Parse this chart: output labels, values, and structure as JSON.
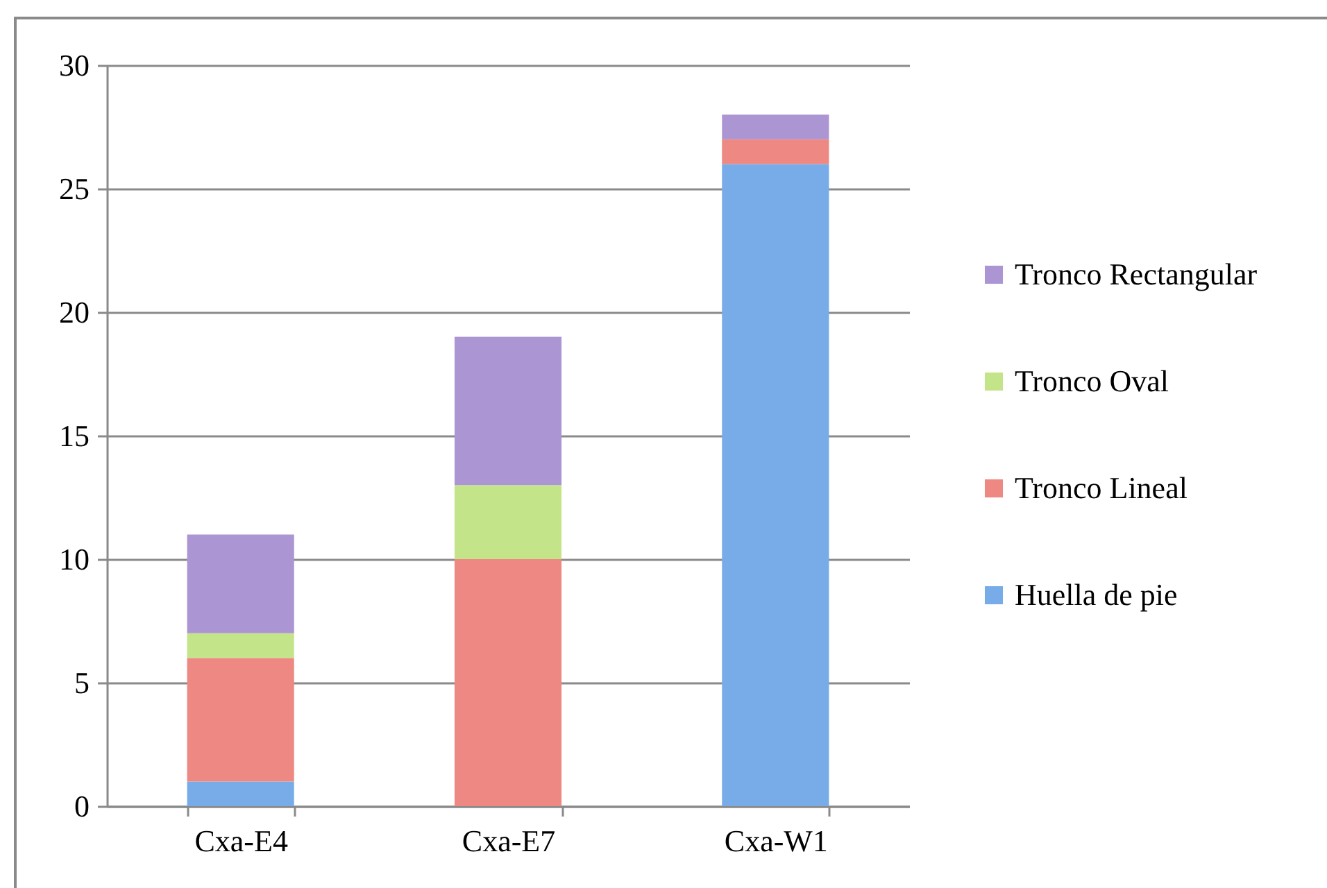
{
  "chart_data": {
    "type": "bar",
    "stacked": true,
    "categories": [
      "Cxa-E4",
      "Cxa-E7",
      "Cxa-W1"
    ],
    "series": [
      {
        "name": "Huella de pie",
        "color": "#78ace8",
        "values": [
          1,
          0,
          26
        ]
      },
      {
        "name": "Tronco Lineal",
        "color": "#ee8882",
        "values": [
          5,
          10,
          1
        ]
      },
      {
        "name": "Tronco Oval",
        "color": "#c4e48a",
        "values": [
          1,
          3,
          0
        ]
      },
      {
        "name": "Tronco Rectangular",
        "color": "#ab95d2",
        "values": [
          4,
          6,
          1
        ]
      }
    ],
    "ylim": [
      0,
      30
    ],
    "yticks": [
      0,
      5,
      10,
      15,
      20,
      25,
      30
    ],
    "grid": "y",
    "legend": "right"
  }
}
